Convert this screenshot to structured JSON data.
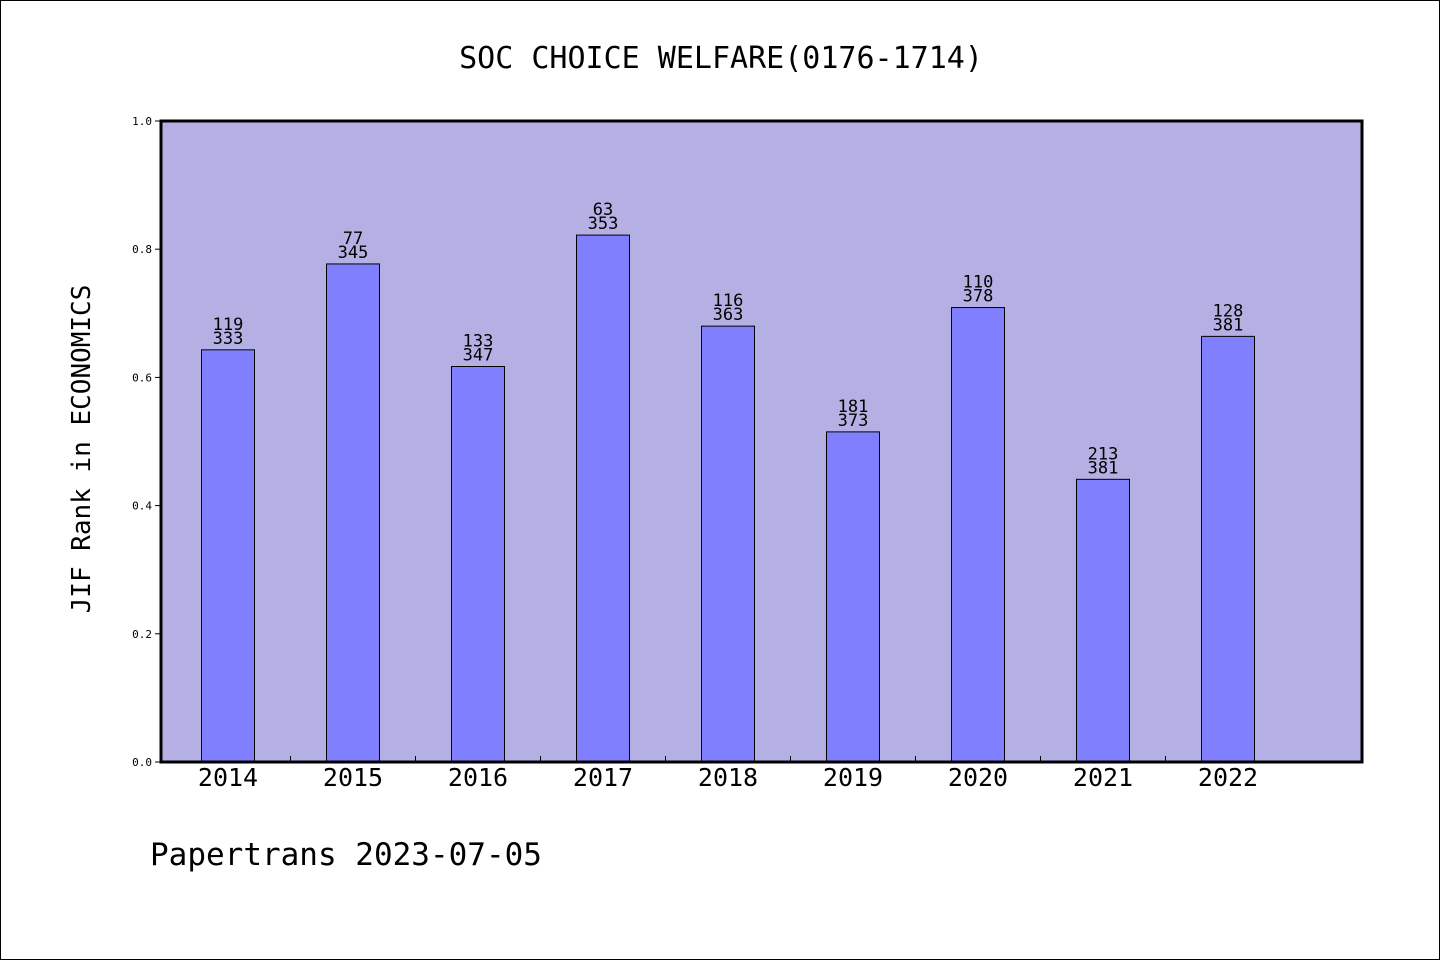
{
  "chart_data": {
    "type": "bar",
    "title": "SOC CHOICE WELFARE(0176-1714)",
    "xlabel": "",
    "ylabel": "JIF Rank in ECONOMICS",
    "ylim": [
      0,
      1.0
    ],
    "yticks": [
      "0.0",
      "0.2",
      "0.4",
      "0.6",
      "0.8",
      "1.0"
    ],
    "grid": false,
    "categories": [
      "2014",
      "2015",
      "2016",
      "2017",
      "2018",
      "2019",
      "2020",
      "2021",
      "2022"
    ],
    "values": [
      0.643,
      0.777,
      0.617,
      0.822,
      0.68,
      0.515,
      0.709,
      0.441,
      0.664
    ],
    "rank": [
      "119",
      "77",
      "133",
      "63",
      "116",
      "181",
      "110",
      "213",
      "128"
    ],
    "total": [
      "333",
      "345",
      "347",
      "353",
      "363",
      "373",
      "378",
      "381",
      "381"
    ],
    "colors": {
      "plot_bg": "#b5b0e3",
      "bar": "#8080ff",
      "edge": "#000000"
    }
  },
  "footer": {
    "text": "Papertrans 2023-07-05"
  }
}
